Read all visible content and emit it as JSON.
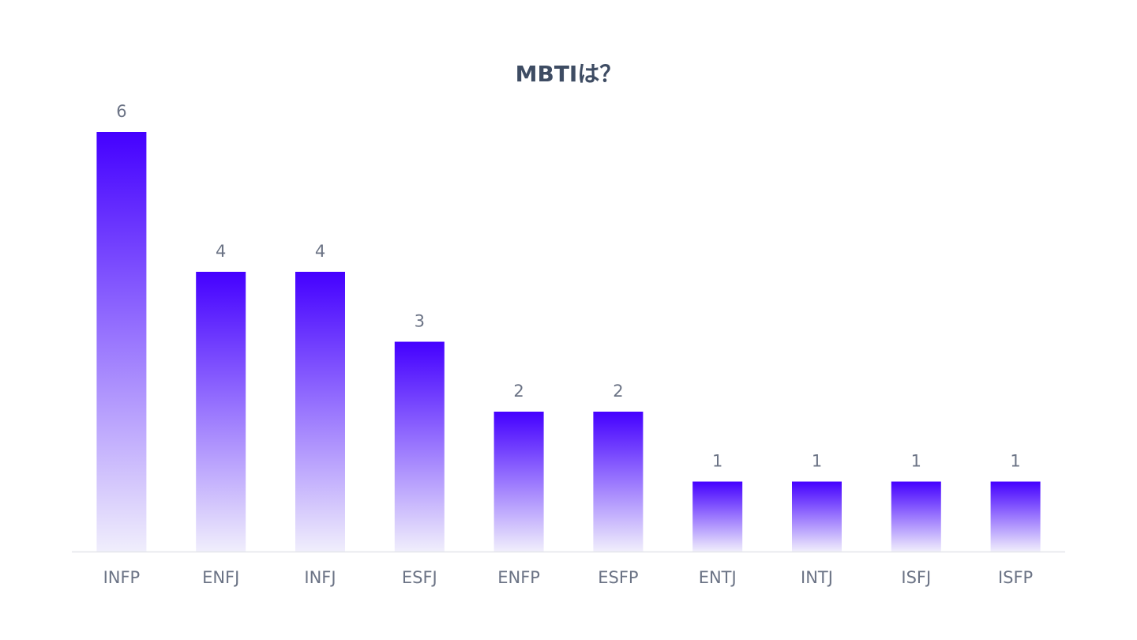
{
  "chart_data": {
    "type": "bar",
    "title": "MBTIは？",
    "categories": [
      "INFP",
      "ENFJ",
      "INFJ",
      "ESFJ",
      "ENFP",
      "ESFP",
      "ENTJ",
      "INTJ",
      "ISFJ",
      "ISFP"
    ],
    "values": [
      6,
      4,
      4,
      3,
      2,
      2,
      1,
      1,
      1,
      1
    ],
    "ylim": [
      0,
      6
    ],
    "grid": false,
    "data_labels": true,
    "bar_color_top": "#4400ff",
    "bar_color_bottom": "#f0eefc",
    "axis_color": "#e3e5ea",
    "text_color": "#6b7385",
    "title_color": "#3e4c63"
  }
}
